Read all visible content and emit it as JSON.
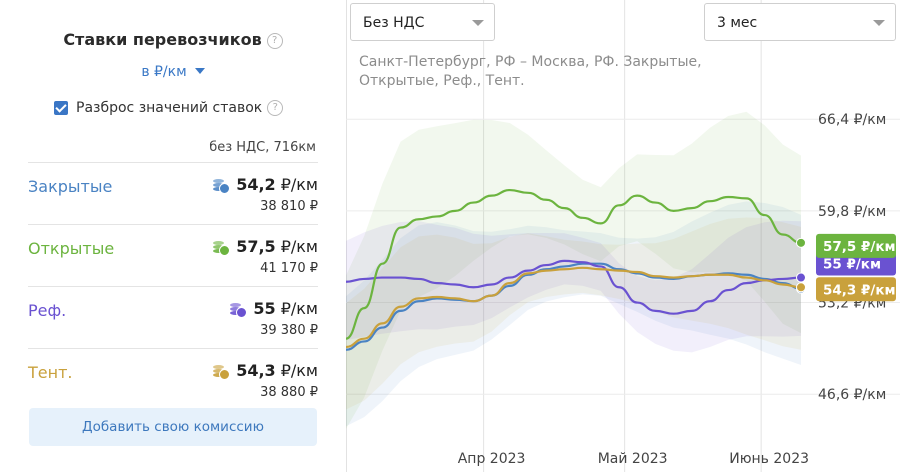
{
  "panel": {
    "title": "Ставки перевозчиков",
    "help": "?",
    "unit_select": "в ₽/км",
    "spread_label": "Разброс значений ставок",
    "sub_header": "без НДС, 716км",
    "rows": [
      {
        "name": "Закрытые",
        "rate": "54,2",
        "unit": "₽/км",
        "total": "38 810 ₽",
        "color": "#4a83c3"
      },
      {
        "name": "Открытые",
        "rate": "57,5",
        "unit": "₽/км",
        "total": "41 170 ₽",
        "color": "#6cb43f"
      },
      {
        "name": "Реф.",
        "rate": "55",
        "unit": "₽/км",
        "total": "39 380 ₽",
        "color": "#6a52d1"
      },
      {
        "name": "Тент.",
        "rate": "54,3",
        "unit": "₽/км",
        "total": "38 880 ₽",
        "color": "#c9a13c"
      }
    ],
    "add_button": "Добавить свою комиссию"
  },
  "controls": {
    "vat_select": "Без НДС",
    "period_select": "3 мес"
  },
  "route_text": "Санкт-Петербург, РФ – Москва, РФ. Закрытые, Открытые, Реф., Тент.",
  "chart_data": {
    "type": "line",
    "ylim": [
      41,
      68
    ],
    "yticks": [
      {
        "value": 66.4,
        "label": "66,4 ₽/км"
      },
      {
        "value": 59.8,
        "label": "59,8 ₽/км"
      },
      {
        "value": 53.2,
        "label": "53,2 ₽/км"
      },
      {
        "value": 46.6,
        "label": "46,6 ₽/км"
      }
    ],
    "xlim": [
      0,
      100
    ],
    "xticks": [
      {
        "value": 32,
        "label": "Апр 2023"
      },
      {
        "value": 63,
        "label": "Май 2023"
      },
      {
        "value": 93,
        "label": "Июнь 2023"
      }
    ],
    "x": [
      0,
      4,
      8,
      12,
      16,
      20,
      24,
      28,
      32,
      36,
      40,
      44,
      48,
      52,
      56,
      60,
      64,
      68,
      72,
      76,
      80,
      84,
      88,
      92,
      96,
      100
    ],
    "series": [
      {
        "name": "Закрытые",
        "color": "#4a83c3",
        "values": [
          49.8,
          50.4,
          51.4,
          52.6,
          53.3,
          53.5,
          53.4,
          53.3,
          53.7,
          54.4,
          55.2,
          55.6,
          55.8,
          56.0,
          56.0,
          55.6,
          55.3,
          55.0,
          54.9,
          55.1,
          55.2,
          55.3,
          55.2,
          54.9,
          54.6,
          54.2
        ],
        "badge": null
      },
      {
        "name": "Открытые",
        "color": "#6cb43f",
        "values": [
          50.6,
          52.8,
          56.0,
          58.6,
          59.2,
          59.4,
          59.8,
          60.4,
          60.9,
          61.3,
          61.1,
          60.6,
          60.0,
          59.3,
          58.9,
          60.2,
          60.9,
          60.4,
          59.8,
          60.0,
          60.5,
          60.8,
          60.7,
          59.5,
          58.1,
          57.5
        ],
        "badge": "57,5 ₽/км"
      },
      {
        "name": "Реф.",
        "color": "#6a52d1",
        "values": [
          54.7,
          54.9,
          55.0,
          55.0,
          54.9,
          54.6,
          54.5,
          54.3,
          54.5,
          55.0,
          55.5,
          55.9,
          56.2,
          56.1,
          55.8,
          54.3,
          53.2,
          52.6,
          52.4,
          52.6,
          53.3,
          54.1,
          54.6,
          54.8,
          54.9,
          55.0
        ],
        "badge": "55 ₽/км"
      },
      {
        "name": "Тент.",
        "color": "#c9a13c",
        "values": [
          50.0,
          50.6,
          51.7,
          52.9,
          53.5,
          53.6,
          53.5,
          53.3,
          53.7,
          54.6,
          55.3,
          55.5,
          55.6,
          55.7,
          55.6,
          55.5,
          55.4,
          55.1,
          55.0,
          55.1,
          55.2,
          55.2,
          55.0,
          54.8,
          54.5,
          54.3
        ],
        "badge": "54,3 ₽/км"
      }
    ]
  }
}
